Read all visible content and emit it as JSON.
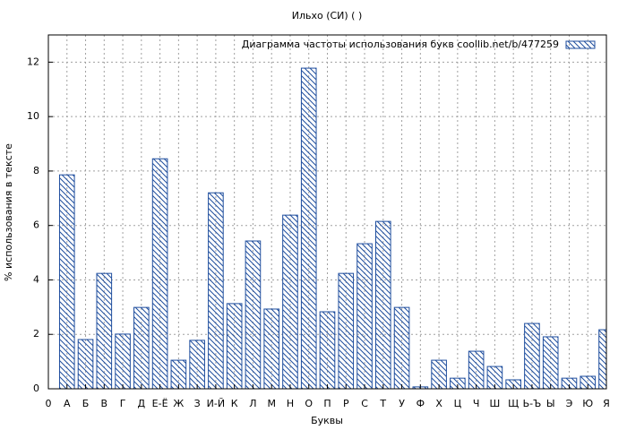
{
  "chart_data": {
    "type": "bar",
    "title": "Ильхо (СИ) ( )",
    "legend_label": "Диаграмма частоты использования букв  coollib.net/b/477259",
    "legend_position": "top-right",
    "xlabel": "Буквы",
    "ylabel": "% использования в тексте",
    "categories": [
      "0",
      "А",
      "Б",
      "В",
      "Г",
      "Д",
      "Е-Ё",
      "Ж",
      "З",
      "И-Й",
      "К",
      "Л",
      "М",
      "Н",
      "О",
      "П",
      "Р",
      "С",
      "Т",
      "У",
      "Ф",
      "Х",
      "Ц",
      "Ч",
      "Ш",
      "Щ",
      "Ь-Ъ",
      "Ы",
      "Э",
      "Ю",
      "Я"
    ],
    "values": [
      null,
      7.86,
      1.81,
      4.24,
      2.01,
      2.99,
      8.45,
      1.05,
      1.78,
      7.2,
      3.13,
      5.43,
      2.93,
      6.38,
      11.78,
      2.83,
      4.24,
      5.33,
      6.15,
      2.99,
      0.07,
      1.05,
      0.39,
      1.38,
      0.82,
      0.33,
      2.4,
      1.91,
      0.39,
      0.46,
      2.17
    ],
    "color": "#1f4e9e",
    "ylim": [
      0,
      13
    ],
    "yticks": [
      0,
      2,
      4,
      6,
      8,
      10,
      12
    ],
    "grid": true
  }
}
